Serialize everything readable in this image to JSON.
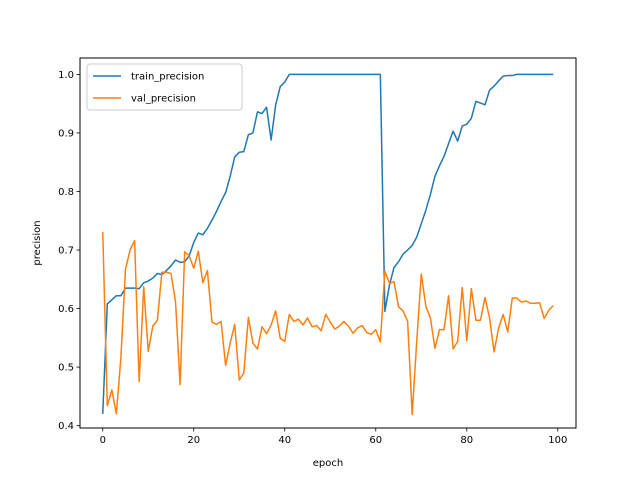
{
  "chart_data": {
    "type": "line",
    "xlabel": "epoch",
    "ylabel": "precision",
    "xlim": [
      -5,
      104
    ],
    "ylim": [
      0.396,
      1.028
    ],
    "xticks": [
      0,
      20,
      40,
      60,
      80,
      100
    ],
    "yticks": [
      0.4,
      0.5,
      0.6,
      0.7,
      0.8,
      0.9,
      1.0
    ],
    "xtick_labels": [
      "0",
      "20",
      "40",
      "60",
      "80",
      "100"
    ],
    "ytick_labels": [
      "0.4",
      "0.5",
      "0.6",
      "0.7",
      "0.8",
      "0.9",
      "1.0"
    ],
    "grid": false,
    "legend_position": "top-left",
    "series": [
      {
        "name": "train_precision",
        "color": "#1f77b4",
        "values": [
          0.42,
          0.608,
          0.615,
          0.622,
          0.622,
          0.635,
          0.635,
          0.635,
          0.634,
          0.644,
          0.647,
          0.652,
          0.66,
          0.658,
          0.665,
          0.673,
          0.683,
          0.679,
          0.68,
          0.69,
          0.713,
          0.729,
          0.726,
          0.737,
          0.751,
          0.766,
          0.783,
          0.798,
          0.826,
          0.859,
          0.867,
          0.868,
          0.897,
          0.9,
          0.936,
          0.933,
          0.944,
          0.888,
          0.948,
          0.979,
          0.987,
          1.0,
          1.0,
          1.0,
          1.0,
          1.0,
          1.0,
          1.0,
          1.0,
          1.0,
          1.0,
          1.0,
          1.0,
          1.0,
          1.0,
          1.0,
          1.0,
          1.0,
          1.0,
          1.0,
          1.0,
          1.0,
          0.595,
          0.64,
          0.67,
          0.68,
          0.693,
          0.7,
          0.708,
          0.722,
          0.745,
          0.768,
          0.795,
          0.826,
          0.844,
          0.86,
          0.882,
          0.903,
          0.886,
          0.912,
          0.915,
          0.925,
          0.954,
          0.951,
          0.948,
          0.973,
          0.98,
          0.989,
          0.997,
          0.998,
          0.998,
          1.0,
          1.0,
          1.0,
          1.0,
          1.0,
          1.0,
          1.0,
          1.0,
          1.0
        ]
      },
      {
        "name": "val_precision",
        "color": "#ff7f0e",
        "values": [
          0.731,
          0.434,
          0.461,
          0.42,
          0.518,
          0.667,
          0.7,
          0.716,
          0.475,
          0.637,
          0.527,
          0.57,
          0.58,
          0.662,
          0.662,
          0.66,
          0.611,
          0.47,
          0.697,
          0.69,
          0.669,
          0.698,
          0.644,
          0.665,
          0.577,
          0.573,
          0.578,
          0.503,
          0.541,
          0.573,
          0.478,
          0.49,
          0.585,
          0.541,
          0.531,
          0.569,
          0.557,
          0.572,
          0.596,
          0.549,
          0.544,
          0.59,
          0.578,
          0.582,
          0.572,
          0.584,
          0.569,
          0.571,
          0.562,
          0.59,
          0.577,
          0.565,
          0.57,
          0.578,
          0.57,
          0.558,
          0.567,
          0.571,
          0.559,
          0.556,
          0.564,
          0.543,
          0.664,
          0.643,
          0.646,
          0.603,
          0.596,
          0.578,
          0.419,
          0.544,
          0.659,
          0.604,
          0.584,
          0.532,
          0.564,
          0.564,
          0.622,
          0.531,
          0.544,
          0.636,
          0.545,
          0.634,
          0.58,
          0.58,
          0.619,
          0.584,
          0.526,
          0.567,
          0.59,
          0.56,
          0.618,
          0.618,
          0.611,
          0.613,
          0.609,
          0.609,
          0.61,
          0.583,
          0.597,
          0.605
        ]
      }
    ]
  }
}
